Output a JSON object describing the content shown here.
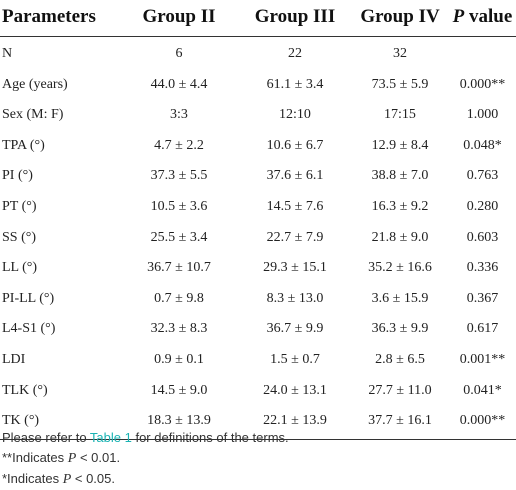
{
  "table": {
    "headers": [
      "Parameters",
      "Group II",
      "Group III",
      "Group IV",
      "P value"
    ],
    "header_p_italic": "P",
    "header_p_rest": " value",
    "rows": [
      [
        "N",
        "6",
        "22",
        "32",
        ""
      ],
      [
        "Age (years)",
        "44.0 ± 4.4",
        "61.1 ± 3.4",
        "73.5 ± 5.9",
        "0.000**"
      ],
      [
        "Sex (M: F)",
        "3:3",
        "12:10",
        "17:15",
        "1.000"
      ],
      [
        "TPA (°)",
        "4.7 ± 2.2",
        "10.6 ± 6.7",
        "12.9 ± 8.4",
        "0.048*"
      ],
      [
        "PI (°)",
        "37.3 ± 5.5",
        "37.6 ± 6.1",
        "38.8 ± 7.0",
        "0.763"
      ],
      [
        "PT (°)",
        "10.5 ± 3.6",
        "14.5 ± 7.6",
        "16.3 ± 9.2",
        "0.280"
      ],
      [
        "SS (°)",
        "25.5 ± 3.4",
        "22.7 ± 7.9",
        "21.8 ± 9.0",
        "0.603"
      ],
      [
        "LL (°)",
        "36.7 ± 10.7",
        "29.3 ± 15.1",
        "35.2 ± 16.6",
        "0.336"
      ],
      [
        "PI-LL (°)",
        "0.7 ± 9.8",
        "8.3 ± 13.0",
        "3.6 ± 15.9",
        "0.367"
      ],
      [
        "L4-S1 (°)",
        "32.3 ± 8.3",
        "36.7 ± 9.9",
        "36.3 ± 9.9",
        "0.617"
      ],
      [
        "LDI",
        "0.9 ± 0.1",
        "1.5 ± 0.7",
        "2.8 ± 6.5",
        "0.001**"
      ],
      [
        "TLK (°)",
        "14.5 ± 9.0",
        "24.0 ± 13.1",
        "27.7 ± 11.0",
        "0.041*"
      ],
      [
        "TK (°)",
        "18.3 ± 13.9",
        "22.1 ± 13.9",
        "37.7 ± 16.1",
        "0.000**"
      ]
    ]
  },
  "footnotes": {
    "line1_prefix": "Please refer to ",
    "line1_link": "Table 1",
    "line1_suffix": " for definitions of the terms.",
    "line2_prefix": "**Indicates ",
    "line2_var": "P",
    "line2_suffix": " < 0.01.",
    "line3_prefix": "*Indicates ",
    "line3_var": "P",
    "line3_suffix": " < 0.05.",
    "link_color": "#1ab3b3"
  }
}
